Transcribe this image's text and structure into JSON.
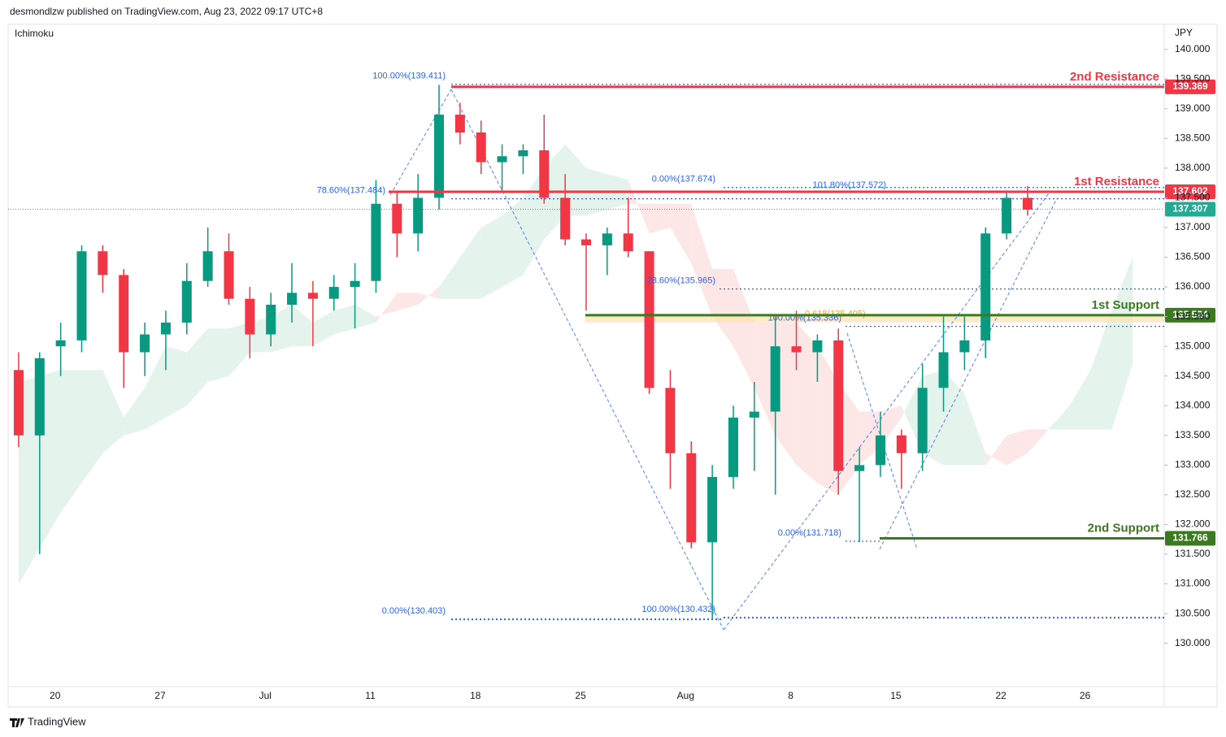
{
  "chart_data": {
    "type": "candlestick",
    "header": "desmondlzw published on TradingView.com, Aug 23, 2022 09:17 UTC+8",
    "indicator": "Ichimoku",
    "currency": "JPY",
    "footer": "TradingView",
    "categories": [
      null,
      null,
      "20",
      null,
      null,
      null,
      null,
      "27",
      null,
      null,
      null,
      null,
      "Jul",
      null,
      null,
      null,
      null,
      "11",
      null,
      null,
      null,
      null,
      "18",
      null,
      null,
      null,
      null,
      "25",
      null,
      null,
      null,
      null,
      "Aug",
      null,
      null,
      null,
      null,
      "8",
      null,
      null,
      null,
      null,
      "15",
      null,
      null,
      null,
      null,
      "22",
      null,
      null,
      null,
      "26",
      null,
      null,
      null
    ],
    "ohlc": {
      "open": [
        134.6,
        133.5,
        135.0,
        135.1,
        136.6,
        136.2,
        134.9,
        135.2,
        135.4,
        136.1,
        136.6,
        135.8,
        135.2,
        135.7,
        135.9,
        135.8,
        136.0,
        136.1,
        137.4,
        136.9,
        137.5,
        138.9,
        138.6,
        138.1,
        138.2,
        138.3,
        137.5,
        136.8,
        136.7,
        136.9,
        136.6,
        134.3,
        133.2,
        131.7,
        132.8,
        133.8,
        133.9,
        135.0,
        134.9,
        135.1,
        132.9,
        133.0,
        133.5,
        133.2,
        134.3,
        134.9,
        135.1,
        136.9,
        137.5,
        null,
        null,
        null,
        null,
        null,
        null
      ],
      "high": [
        134.9,
        134.9,
        135.4,
        136.7,
        136.7,
        136.3,
        135.4,
        135.6,
        136.4,
        137.0,
        136.9,
        136.0,
        135.9,
        136.4,
        136.1,
        136.2,
        136.4,
        137.8,
        137.6,
        137.9,
        139.4,
        139.1,
        138.8,
        138.4,
        138.4,
        138.9,
        137.9,
        136.9,
        137.0,
        137.5,
        136.6,
        134.6,
        133.4,
        133.0,
        134.0,
        134.4,
        135.5,
        135.6,
        135.2,
        135.3,
        133.3,
        133.9,
        133.6,
        134.7,
        135.5,
        135.5,
        137.0,
        137.6,
        137.7,
        null,
        null,
        null,
        null,
        null,
        null
      ],
      "low": [
        133.3,
        131.5,
        134.5,
        134.9,
        135.9,
        134.3,
        134.5,
        134.6,
        135.2,
        136.0,
        135.7,
        134.8,
        135.0,
        135.4,
        135.0,
        135.6,
        135.3,
        135.9,
        136.5,
        136.6,
        137.3,
        138.4,
        137.9,
        137.6,
        137.9,
        137.4,
        136.7,
        135.6,
        136.2,
        136.5,
        134.2,
        132.6,
        131.6,
        130.4,
        132.6,
        132.9,
        132.5,
        134.6,
        134.4,
        132.5,
        131.7,
        132.8,
        132.6,
        132.9,
        133.9,
        134.6,
        134.8,
        136.8,
        137.2,
        null,
        null,
        null,
        null,
        null,
        null
      ],
      "close": [
        133.5,
        134.8,
        135.1,
        136.6,
        136.2,
        134.9,
        135.2,
        135.4,
        136.1,
        136.6,
        135.8,
        135.2,
        135.7,
        135.9,
        135.8,
        136.0,
        136.1,
        137.4,
        136.9,
        137.5,
        138.9,
        138.6,
        138.1,
        138.2,
        138.3,
        137.5,
        136.8,
        136.7,
        136.9,
        136.6,
        134.3,
        133.2,
        131.7,
        132.8,
        133.8,
        133.9,
        135.0,
        134.9,
        135.1,
        132.9,
        133.0,
        133.5,
        133.2,
        134.3,
        134.9,
        135.1,
        136.9,
        137.5,
        137.3,
        null,
        null,
        null,
        null,
        null,
        null
      ],
      "up_color": "#089981",
      "down_color": "#f23645"
    },
    "cloud": {
      "span_a": [
        134.4,
        134.5,
        134.6,
        134.6,
        134.6,
        133.8,
        134.3,
        135.0,
        134.9,
        135.3,
        135.3,
        135.4,
        135.5,
        135.7,
        135.4,
        135.6,
        135.7,
        135.5,
        135.6,
        135.7,
        136.0,
        136.5,
        137.0,
        137.2,
        137.5,
        138.0,
        138.4,
        138.0,
        137.9,
        137.8,
        136.9,
        137.0,
        136.4,
        135.5,
        135.0,
        134.3,
        133.5,
        133.0,
        132.7,
        132.5,
        133.0,
        133.3,
        133.8,
        134.5,
        134.6,
        134.2,
        133.2,
        133.0,
        133.2,
        133.6,
        134.0,
        134.6,
        135.6,
        136.5,
        null
      ],
      "span_b": [
        131.0,
        131.6,
        132.2,
        132.7,
        133.2,
        133.5,
        133.6,
        133.8,
        134.0,
        134.4,
        134.5,
        134.9,
        134.9,
        135.0,
        135.0,
        135.2,
        135.3,
        135.4,
        135.9,
        135.9,
        135.8,
        135.8,
        135.8,
        136.0,
        136.2,
        136.8,
        137.2,
        137.2,
        137.3,
        137.4,
        137.4,
        137.4,
        137.4,
        136.3,
        136.3,
        135.4,
        135.4,
        135.4,
        135.0,
        134.4,
        133.9,
        133.9,
        134.0,
        133.2,
        133.0,
        133.0,
        133.0,
        133.5,
        133.6,
        133.6,
        133.6,
        133.6,
        133.6,
        134.7,
        null
      ],
      "colors": [
        "#e4f3ec",
        "#fde6e6"
      ]
    },
    "levels": [
      {
        "name": "2nd Resistance",
        "value": 139.369,
        "color": "#f23645"
      },
      {
        "name": "1st Resistance",
        "value": 137.602,
        "color": "#f23645"
      },
      {
        "name": "1st Support",
        "value": 135.524,
        "color": "#3b7a1f"
      },
      {
        "name": "2nd Support",
        "value": 131.766,
        "color": "#3b7a1f"
      }
    ],
    "last_price": {
      "value": 137.307,
      "color": "#22ab94"
    },
    "fib": [
      {
        "label": "100.00%(139.411)",
        "value": 139.411
      },
      {
        "label": "78.60%(137.484)",
        "value": 137.484
      },
      {
        "label": "0.00%(137.674)",
        "value": 137.674
      },
      {
        "label": "101.80%(137.572)",
        "value": 137.572
      },
      {
        "label": "23.60%(135.965)",
        "value": 135.965
      },
      {
        "label": "0.618(135.405)",
        "value": 135.405
      },
      {
        "label": "100.00%(135.336)",
        "value": 135.336
      },
      {
        "label": "0.00%(131.718)",
        "value": 131.718
      },
      {
        "label": "0.00%(130.403)",
        "value": 130.403
      },
      {
        "label": "100.00%(130.432)",
        "value": 130.432
      }
    ],
    "ylim": [
      129.27,
      140.42
    ],
    "yticks": [
      {
        "value": 130,
        "label": "130.000"
      },
      {
        "value": 130.5,
        "label": "130.500"
      },
      {
        "value": 131,
        "label": "131.000"
      },
      {
        "value": 131.5,
        "label": "131.500"
      },
      {
        "value": 132,
        "label": "132.000"
      },
      {
        "value": 132.5,
        "label": "132.500"
      },
      {
        "value": 133,
        "label": "133.000"
      },
      {
        "value": 133.5,
        "label": "133.500"
      },
      {
        "value": 134,
        "label": "134.000"
      },
      {
        "value": 134.5,
        "label": "134.500"
      },
      {
        "value": 135,
        "label": "135.000"
      },
      {
        "value": 135.5,
        "label": "135.500"
      },
      {
        "value": 136,
        "label": "136.000"
      },
      {
        "value": 136.5,
        "label": "136.500"
      },
      {
        "value": 137,
        "label": "137.000"
      },
      {
        "value": 137.5,
        "label": "137.500"
      },
      {
        "value": 138,
        "label": "138.000"
      },
      {
        "value": 138.5,
        "label": "138.500"
      },
      {
        "value": 139,
        "label": "139.000"
      },
      {
        "value": 139.5,
        "label": "139.500"
      },
      {
        "value": 140,
        "label": "140.000"
      }
    ]
  }
}
